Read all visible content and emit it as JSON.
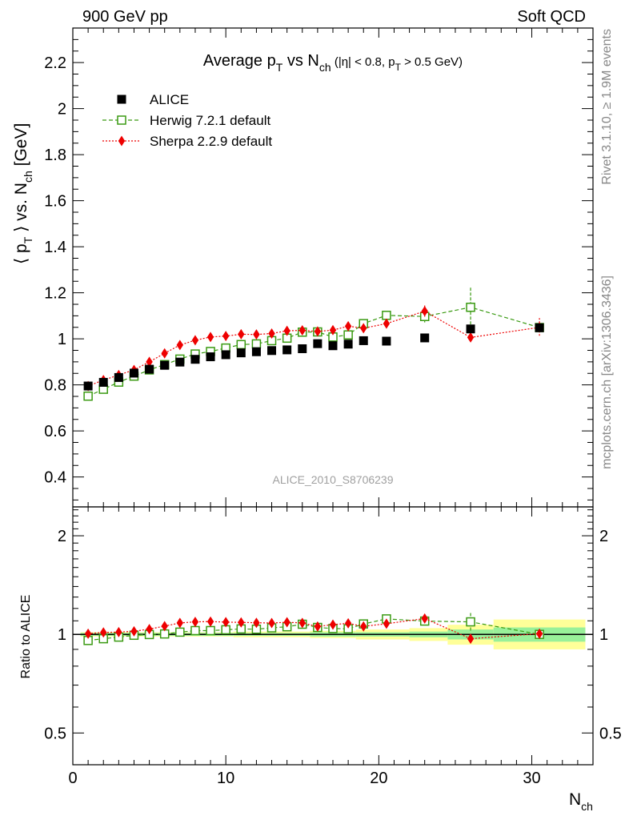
{
  "header": {
    "left": "900 GeV pp",
    "right": "Soft QCD"
  },
  "side_labels": {
    "rivet": "Rivet 3.1.10, ≥ 1.9M events",
    "mcplots": "mcplots.cern.ch [arXiv:1306.3436]"
  },
  "chart_data": [
    {
      "panel": "main",
      "type": "scatter",
      "title_parts": {
        "t1": "Average p",
        "t1sub": "T",
        "t2": " vs N",
        "t2sub": "ch",
        "t3": " (|η| < 0.8, p",
        "t3sub": "T",
        "t4": " > 0.5 GeV)"
      },
      "ylabel_parts": {
        "a": "⟨ p",
        "asub": "T",
        "b": " ⟩ vs. N",
        "bsub": "ch",
        "c": " [GeV]"
      },
      "xlabel_parts": {
        "a": "N",
        "asub": "ch"
      },
      "watermark": "ALICE_2010_S8706239",
      "xlim": [
        0,
        34
      ],
      "ylim": [
        0.27,
        2.35
      ],
      "x_ticks": [
        0,
        10,
        20,
        30
      ],
      "x_tick_labels": [
        "0",
        "10",
        "20",
        "30"
      ],
      "y_ticks": [
        0.4,
        0.6,
        0.8,
        1,
        1.2,
        1.4,
        1.6,
        1.8,
        2,
        2.2
      ],
      "y_tick_labels": [
        "0.4",
        "0.6",
        "0.8",
        "1",
        "1.2",
        "1.4",
        "1.6",
        "1.8",
        "2",
        "2.2"
      ],
      "legend_position": "top-left",
      "series": [
        {
          "name": "ALICE",
          "marker": "filled-square",
          "color": "#000000",
          "line": "none",
          "points": [
            [
              1,
              0.795
            ],
            [
              2,
              0.811
            ],
            [
              3,
              0.832
            ],
            [
              4,
              0.851
            ],
            [
              5,
              0.868
            ],
            [
              6,
              0.885
            ],
            [
              7,
              0.899
            ],
            [
              8,
              0.911
            ],
            [
              9,
              0.922
            ],
            [
              10,
              0.931
            ],
            [
              11,
              0.939
            ],
            [
              12,
              0.944
            ],
            [
              13,
              0.949
            ],
            [
              14,
              0.952
            ],
            [
              15,
              0.957
            ],
            [
              16,
              0.979
            ],
            [
              17,
              0.97
            ],
            [
              18,
              0.977
            ],
            [
              19,
              0.992
            ],
            [
              20.5,
              0.99
            ],
            [
              23,
              1.004
            ],
            [
              26,
              1.043
            ],
            [
              30.5,
              1.048
            ]
          ]
        },
        {
          "name": "Herwig 7.2.1 default",
          "marker": "open-square",
          "color": "#3a9a12",
          "line": "dashed",
          "points": [
            [
              1,
              0.751
            ],
            [
              2,
              0.781
            ],
            [
              3,
              0.812
            ],
            [
              4,
              0.838
            ],
            [
              5,
              0.865
            ],
            [
              6,
              0.888
            ],
            [
              7,
              0.912
            ],
            [
              8,
              0.934
            ],
            [
              9,
              0.945
            ],
            [
              10,
              0.96
            ],
            [
              11,
              0.975
            ],
            [
              12,
              0.978
            ],
            [
              13,
              0.992
            ],
            [
              14,
              1.003
            ],
            [
              15,
              1.029
            ],
            [
              16,
              1.03
            ],
            [
              17,
              1.008
            ],
            [
              18,
              1.017
            ],
            [
              19,
              1.066
            ],
            [
              20.5,
              1.102
            ],
            [
              23,
              1.097
            ],
            [
              26,
              1.137
            ],
            [
              30.5,
              1.049
            ]
          ],
          "errors": [
            0,
            0,
            0,
            0,
            0,
            0,
            0,
            0,
            0,
            0,
            0,
            0,
            0,
            0,
            0,
            0,
            0,
            0,
            0,
            0.015,
            0.03,
            0.085,
            0
          ]
        },
        {
          "name": "Sherpa 2.2.9 default",
          "marker": "filled-diamond",
          "color": "#ee0000",
          "line": "dotted",
          "points": [
            [
              1,
              0.795
            ],
            [
              2,
              0.821
            ],
            [
              3,
              0.843
            ],
            [
              4,
              0.865
            ],
            [
              5,
              0.9
            ],
            [
              6,
              0.937
            ],
            [
              7,
              0.973
            ],
            [
              8,
              0.994
            ],
            [
              9,
              1.008
            ],
            [
              10,
              1.012
            ],
            [
              11,
              1.02
            ],
            [
              12,
              1.019
            ],
            [
              13,
              1.023
            ],
            [
              14,
              1.035
            ],
            [
              15,
              1.037
            ],
            [
              16,
              1.032
            ],
            [
              17,
              1.038
            ],
            [
              18,
              1.055
            ],
            [
              19,
              1.046
            ],
            [
              20.5,
              1.066
            ],
            [
              23,
              1.12
            ],
            [
              26,
              1.006
            ],
            [
              30.5,
              1.05
            ]
          ],
          "errors": [
            0,
            0,
            0,
            0,
            0,
            0,
            0,
            0,
            0,
            0,
            0,
            0,
            0,
            0,
            0,
            0,
            0,
            0,
            0,
            0,
            0.025,
            0.02,
            0.04
          ]
        }
      ]
    },
    {
      "panel": "ratio",
      "type": "scatter",
      "ylabel": "Ratio to ALICE",
      "log_y": true,
      "xlim": [
        0,
        34
      ],
      "ylim": [
        0.4,
        2.45
      ],
      "y_ticks": [
        0.5,
        1,
        2
      ],
      "y_tick_labels": [
        "0.5",
        "1",
        "2"
      ],
      "bands": [
        {
          "x": [
            0.5,
            5.5
          ],
          "inner": [
            0.99,
            1.01
          ],
          "outer": [
            0.985,
            1.015
          ]
        },
        {
          "x": [
            5.5,
            10.5
          ],
          "inner": [
            0.99,
            1.01
          ],
          "outer": [
            0.985,
            1.015
          ]
        },
        {
          "x": [
            10.5,
            15.5
          ],
          "inner": [
            0.99,
            1.01
          ],
          "outer": [
            0.98,
            1.02
          ]
        },
        {
          "x": [
            15.5,
            18.5
          ],
          "inner": [
            0.985,
            1.015
          ],
          "outer": [
            0.975,
            1.025
          ]
        },
        {
          "x": [
            18.5,
            22
          ],
          "inner": [
            0.985,
            1.015
          ],
          "outer": [
            0.965,
            1.035
          ]
        },
        {
          "x": [
            22,
            24.5
          ],
          "inner": [
            0.98,
            1.02
          ],
          "outer": [
            0.955,
            1.045
          ]
        },
        {
          "x": [
            24.5,
            27.5
          ],
          "inner": [
            0.965,
            1.035
          ],
          "outer": [
            0.93,
            1.07
          ]
        },
        {
          "x": [
            27.5,
            33.5
          ],
          "inner": [
            0.95,
            1.05
          ],
          "outer": [
            0.9,
            1.11
          ]
        }
      ],
      "series": [
        {
          "name": "Herwig 7.2.1 default",
          "points": [
            [
              1,
              0.958
            ],
            [
              2,
              0.97
            ],
            [
              3,
              0.981
            ],
            [
              4,
              0.994
            ],
            [
              5,
              0.999
            ],
            [
              6,
              1.003
            ],
            [
              7,
              1.016
            ],
            [
              8,
              1.027
            ],
            [
              9,
              1.027
            ],
            [
              10,
              1.033
            ],
            [
              11,
              1.039
            ],
            [
              12,
              1.037
            ],
            [
              13,
              1.047
            ],
            [
              14,
              1.055
            ],
            [
              15,
              1.074
            ],
            [
              16,
              1.05
            ],
            [
              17,
              1.042
            ],
            [
              18,
              1.04
            ],
            [
              19,
              1.076
            ],
            [
              20.5,
              1.115
            ],
            [
              23,
              1.098
            ],
            [
              26,
              1.092
            ],
            [
              30.5,
              1.0
            ]
          ],
          "errors": [
            0,
            0,
            0,
            0,
            0,
            0,
            0,
            0,
            0,
            0,
            0,
            0,
            0,
            0,
            0,
            0,
            0,
            0,
            0,
            0.01,
            0.025,
            0.07,
            0
          ]
        },
        {
          "name": "Sherpa 2.2.9 default",
          "points": [
            [
              1,
              1.005
            ],
            [
              2,
              1.014
            ],
            [
              3,
              1.016
            ],
            [
              4,
              1.022
            ],
            [
              5,
              1.038
            ],
            [
              6,
              1.06
            ],
            [
              7,
              1.084
            ],
            [
              8,
              1.092
            ],
            [
              9,
              1.094
            ],
            [
              10,
              1.09
            ],
            [
              11,
              1.088
            ],
            [
              12,
              1.085
            ],
            [
              13,
              1.083
            ],
            [
              14,
              1.089
            ],
            [
              15,
              1.084
            ],
            [
              16,
              1.057
            ],
            [
              17,
              1.071
            ],
            [
              18,
              1.081
            ],
            [
              19,
              1.058
            ],
            [
              20.5,
              1.078
            ],
            [
              23,
              1.118
            ],
            [
              26,
              0.97
            ],
            [
              30.5,
              1.005
            ]
          ],
          "errors": [
            0,
            0,
            0,
            0,
            0,
            0,
            0,
            0,
            0,
            0,
            0,
            0,
            0,
            0,
            0,
            0,
            0,
            0,
            0,
            0,
            0.02,
            0.015,
            0.035
          ]
        }
      ]
    }
  ]
}
